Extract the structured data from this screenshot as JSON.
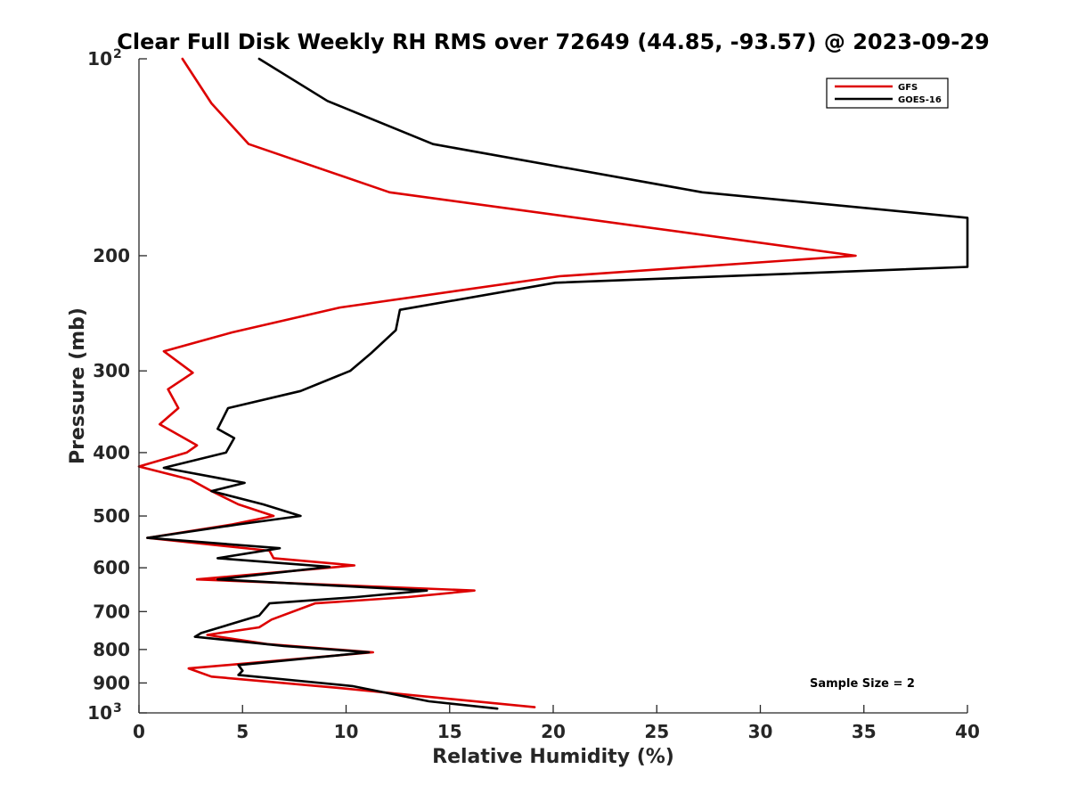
{
  "chart_data": {
    "type": "line",
    "title": "Clear Full Disk Weekly RH RMS over 72649 (44.85, -93.57) @ 2023-09-29",
    "xlabel": "Relative Humidity (%)",
    "ylabel": "Pressure (mb)",
    "xlim": [
      0,
      40
    ],
    "ylim": [
      100,
      1000
    ],
    "y_scale": "log",
    "y_reversed": true,
    "x_ticks": [
      "0",
      "5",
      "10",
      "15",
      "20",
      "25",
      "30",
      "35",
      "40"
    ],
    "y_ticks": [
      {
        "value": 100,
        "label": "10",
        "sup": "2"
      },
      {
        "value": 200,
        "label": "200",
        "sup": ""
      },
      {
        "value": 300,
        "label": "300",
        "sup": ""
      },
      {
        "value": 400,
        "label": "400",
        "sup": ""
      },
      {
        "value": 500,
        "label": "500",
        "sup": ""
      },
      {
        "value": 600,
        "label": "600",
        "sup": ""
      },
      {
        "value": 700,
        "label": "700",
        "sup": ""
      },
      {
        "value": 800,
        "label": "800",
        "sup": ""
      },
      {
        "value": 900,
        "label": "900",
        "sup": ""
      },
      {
        "value": 1000,
        "label": "10",
        "sup": "3"
      }
    ],
    "grid": false,
    "legend_position": "top-right",
    "annotation": "Sample Size = 2",
    "series": [
      {
        "name": "GFS",
        "color": "#dd0000",
        "points": [
          {
            "x": 2.1,
            "y": 100
          },
          {
            "x": 3.5,
            "y": 117
          },
          {
            "x": 5.3,
            "y": 135
          },
          {
            "x": 12.1,
            "y": 160
          },
          {
            "x": 34.6,
            "y": 200
          },
          {
            "x": 20.3,
            "y": 215
          },
          {
            "x": 9.7,
            "y": 240
          },
          {
            "x": 4.5,
            "y": 262
          },
          {
            "x": 1.2,
            "y": 280
          },
          {
            "x": 2.6,
            "y": 302
          },
          {
            "x": 1.4,
            "y": 320
          },
          {
            "x": 1.9,
            "y": 342
          },
          {
            "x": 1.0,
            "y": 362
          },
          {
            "x": 2.8,
            "y": 390
          },
          {
            "x": 2.3,
            "y": 400
          },
          {
            "x": 0.0,
            "y": 420
          },
          {
            "x": 2.5,
            "y": 440
          },
          {
            "x": 3.5,
            "y": 458
          },
          {
            "x": 4.8,
            "y": 480
          },
          {
            "x": 6.5,
            "y": 500
          },
          {
            "x": 4.5,
            "y": 515
          },
          {
            "x": 0.4,
            "y": 540
          },
          {
            "x": 6.3,
            "y": 565
          },
          {
            "x": 6.5,
            "y": 580
          },
          {
            "x": 10.4,
            "y": 595
          },
          {
            "x": 2.8,
            "y": 625
          },
          {
            "x": 16.2,
            "y": 650
          },
          {
            "x": 13.0,
            "y": 665
          },
          {
            "x": 8.5,
            "y": 680
          },
          {
            "x": 6.4,
            "y": 720
          },
          {
            "x": 5.8,
            "y": 740
          },
          {
            "x": 3.3,
            "y": 760
          },
          {
            "x": 6.2,
            "y": 785
          },
          {
            "x": 11.3,
            "y": 808
          },
          {
            "x": 2.4,
            "y": 855
          },
          {
            "x": 3.5,
            "y": 880
          },
          {
            "x": 9.5,
            "y": 915
          },
          {
            "x": 19.1,
            "y": 980
          }
        ]
      },
      {
        "name": "GOES-16",
        "color": "#000000",
        "points": [
          {
            "x": 5.8,
            "y": 100
          },
          {
            "x": 9.1,
            "y": 116
          },
          {
            "x": 14.2,
            "y": 135
          },
          {
            "x": 27.2,
            "y": 160
          },
          {
            "x": 40.0,
            "y": 175
          },
          {
            "x": 40.0,
            "y": 208
          },
          {
            "x": 20.1,
            "y": 220
          },
          {
            "x": 12.6,
            "y": 242
          },
          {
            "x": 12.4,
            "y": 260
          },
          {
            "x": 11.2,
            "y": 282
          },
          {
            "x": 10.2,
            "y": 300
          },
          {
            "x": 7.8,
            "y": 322
          },
          {
            "x": 4.3,
            "y": 342
          },
          {
            "x": 3.8,
            "y": 368
          },
          {
            "x": 4.6,
            "y": 380
          },
          {
            "x": 4.2,
            "y": 400
          },
          {
            "x": 1.2,
            "y": 422
          },
          {
            "x": 5.1,
            "y": 445
          },
          {
            "x": 3.5,
            "y": 458
          },
          {
            "x": 6.0,
            "y": 480
          },
          {
            "x": 7.8,
            "y": 500
          },
          {
            "x": 4.8,
            "y": 515
          },
          {
            "x": 0.4,
            "y": 540
          },
          {
            "x": 6.8,
            "y": 560
          },
          {
            "x": 3.8,
            "y": 580
          },
          {
            "x": 9.2,
            "y": 598
          },
          {
            "x": 3.8,
            "y": 625
          },
          {
            "x": 13.9,
            "y": 650
          },
          {
            "x": 10.5,
            "y": 665
          },
          {
            "x": 6.3,
            "y": 680
          },
          {
            "x": 5.8,
            "y": 710
          },
          {
            "x": 3.0,
            "y": 755
          },
          {
            "x": 2.7,
            "y": 765
          },
          {
            "x": 7.0,
            "y": 790
          },
          {
            "x": 11.1,
            "y": 808
          },
          {
            "x": 4.8,
            "y": 845
          },
          {
            "x": 5.0,
            "y": 862
          },
          {
            "x": 4.8,
            "y": 875
          },
          {
            "x": 10.3,
            "y": 910
          },
          {
            "x": 14.0,
            "y": 960
          },
          {
            "x": 17.3,
            "y": 985
          }
        ]
      }
    ]
  }
}
